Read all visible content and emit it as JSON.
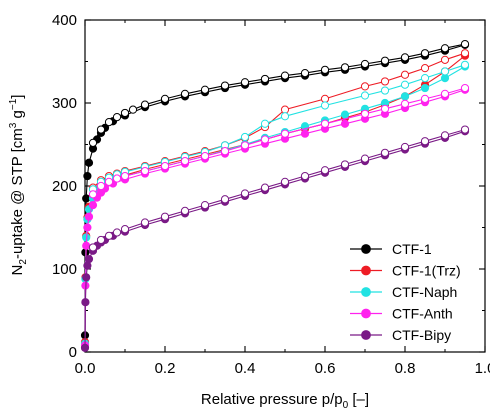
{
  "chart_data": {
    "type": "scatter",
    "xlabel": {
      "main": "Relative pressure p/p",
      "sub": "0",
      "tail": " [–]"
    },
    "ylabel": {
      "pre": "N",
      "sub1": "2",
      "mid": "-uptake @ STP [cm",
      "sup1": "3",
      "mid2": " g",
      "sup2": "−1",
      "tail": "]"
    },
    "xlim": [
      0.0,
      1.0
    ],
    "ylim": [
      0,
      400
    ],
    "xticks": [
      "0.0",
      "0.2",
      "0.4",
      "0.6",
      "0.8",
      "1.0"
    ],
    "yticks": [
      "0",
      "100",
      "200",
      "300",
      "400"
    ],
    "legend_position": "bottom-right",
    "series": [
      {
        "name": "CTF-1",
        "color": "#000000",
        "adsorption": [
          [
            0.0,
            20
          ],
          [
            0.001,
            120
          ],
          [
            0.003,
            185
          ],
          [
            0.006,
            212
          ],
          [
            0.01,
            228
          ],
          [
            0.02,
            245
          ],
          [
            0.03,
            256
          ],
          [
            0.04,
            264
          ],
          [
            0.05,
            270
          ],
          [
            0.07,
            278
          ],
          [
            0.1,
            285
          ],
          [
            0.15,
            295
          ],
          [
            0.2,
            302
          ],
          [
            0.25,
            308
          ],
          [
            0.3,
            313
          ],
          [
            0.35,
            318
          ],
          [
            0.4,
            322
          ],
          [
            0.45,
            326
          ],
          [
            0.5,
            330
          ],
          [
            0.55,
            333
          ],
          [
            0.6,
            337
          ],
          [
            0.65,
            340
          ],
          [
            0.7,
            344
          ],
          [
            0.75,
            348
          ],
          [
            0.8,
            352
          ],
          [
            0.85,
            357
          ],
          [
            0.9,
            363
          ],
          [
            0.95,
            370
          ]
        ],
        "desorption": [
          [
            0.95,
            371
          ],
          [
            0.9,
            366
          ],
          [
            0.85,
            360
          ],
          [
            0.8,
            355
          ],
          [
            0.75,
            351
          ],
          [
            0.7,
            347
          ],
          [
            0.65,
            343
          ],
          [
            0.6,
            340
          ],
          [
            0.55,
            336
          ],
          [
            0.5,
            333
          ],
          [
            0.45,
            329
          ],
          [
            0.4,
            325
          ],
          [
            0.35,
            321
          ],
          [
            0.3,
            316
          ],
          [
            0.25,
            311
          ],
          [
            0.2,
            305
          ],
          [
            0.15,
            298
          ],
          [
            0.12,
            292
          ],
          [
            0.1,
            288
          ],
          [
            0.08,
            283
          ],
          [
            0.06,
            277
          ],
          [
            0.04,
            268
          ],
          [
            0.02,
            252
          ]
        ]
      },
      {
        "name": "CTF-1(Trz)",
        "color": "#ee1c25",
        "adsorption": [
          [
            0.0,
            12
          ],
          [
            0.001,
            90
          ],
          [
            0.003,
            140
          ],
          [
            0.006,
            162
          ],
          [
            0.01,
            175
          ],
          [
            0.02,
            188
          ],
          [
            0.03,
            195
          ],
          [
            0.04,
            200
          ],
          [
            0.05,
            204
          ],
          [
            0.07,
            209
          ],
          [
            0.1,
            213
          ],
          [
            0.15,
            220
          ],
          [
            0.2,
            226
          ],
          [
            0.25,
            232
          ],
          [
            0.3,
            238
          ],
          [
            0.35,
            244
          ],
          [
            0.4,
            250
          ],
          [
            0.45,
            256
          ],
          [
            0.5,
            263
          ],
          [
            0.55,
            269
          ],
          [
            0.6,
            275
          ],
          [
            0.65,
            282
          ],
          [
            0.7,
            289
          ],
          [
            0.75,
            298
          ],
          [
            0.8,
            308
          ],
          [
            0.85,
            322
          ],
          [
            0.9,
            338
          ],
          [
            0.95,
            357
          ]
        ],
        "desorption": [
          [
            0.95,
            360
          ],
          [
            0.9,
            352
          ],
          [
            0.85,
            342
          ],
          [
            0.8,
            334
          ],
          [
            0.75,
            326
          ],
          [
            0.7,
            320
          ],
          [
            0.6,
            305
          ],
          [
            0.5,
            292
          ],
          [
            0.45,
            271
          ],
          [
            0.4,
            258
          ],
          [
            0.35,
            249
          ],
          [
            0.3,
            242
          ],
          [
            0.25,
            236
          ],
          [
            0.2,
            230
          ],
          [
            0.15,
            224
          ],
          [
            0.1,
            218
          ],
          [
            0.08,
            215
          ],
          [
            0.06,
            212
          ],
          [
            0.04,
            207
          ],
          [
            0.02,
            198
          ]
        ]
      },
      {
        "name": "CTF-Naph",
        "color": "#22e2e2",
        "adsorption": [
          [
            0.0,
            10
          ],
          [
            0.001,
            88
          ],
          [
            0.003,
            138
          ],
          [
            0.006,
            160
          ],
          [
            0.01,
            172
          ],
          [
            0.02,
            185
          ],
          [
            0.03,
            193
          ],
          [
            0.04,
            198
          ],
          [
            0.05,
            202
          ],
          [
            0.07,
            207
          ],
          [
            0.1,
            212
          ],
          [
            0.15,
            218
          ],
          [
            0.2,
            224
          ],
          [
            0.25,
            230
          ],
          [
            0.3,
            236
          ],
          [
            0.35,
            243
          ],
          [
            0.4,
            250
          ],
          [
            0.45,
            258
          ],
          [
            0.5,
            265
          ],
          [
            0.55,
            272
          ],
          [
            0.6,
            279
          ],
          [
            0.65,
            286
          ],
          [
            0.7,
            293
          ],
          [
            0.75,
            300
          ],
          [
            0.8,
            308
          ],
          [
            0.85,
            318
          ],
          [
            0.9,
            330
          ],
          [
            0.95,
            344
          ]
        ],
        "desorption": [
          [
            0.95,
            346
          ],
          [
            0.9,
            338
          ],
          [
            0.85,
            330
          ],
          [
            0.8,
            322
          ],
          [
            0.75,
            315
          ],
          [
            0.7,
            309
          ],
          [
            0.6,
            297
          ],
          [
            0.5,
            284
          ],
          [
            0.45,
            275
          ],
          [
            0.4,
            259
          ],
          [
            0.35,
            249
          ],
          [
            0.3,
            241
          ],
          [
            0.25,
            235
          ],
          [
            0.2,
            229
          ],
          [
            0.15,
            223
          ],
          [
            0.1,
            217
          ],
          [
            0.08,
            214
          ],
          [
            0.06,
            210
          ],
          [
            0.04,
            205
          ],
          [
            0.02,
            196
          ]
        ]
      },
      {
        "name": "CTF-Anth",
        "color": "#ff22ee",
        "adsorption": [
          [
            0.0,
            8
          ],
          [
            0.001,
            80
          ],
          [
            0.003,
            128
          ],
          [
            0.006,
            150
          ],
          [
            0.01,
            163
          ],
          [
            0.02,
            177
          ],
          [
            0.03,
            186
          ],
          [
            0.04,
            192
          ],
          [
            0.05,
            197
          ],
          [
            0.07,
            203
          ],
          [
            0.1,
            208
          ],
          [
            0.15,
            215
          ],
          [
            0.2,
            221
          ],
          [
            0.25,
            227
          ],
          [
            0.3,
            233
          ],
          [
            0.35,
            239
          ],
          [
            0.4,
            245
          ],
          [
            0.45,
            251
          ],
          [
            0.5,
            257
          ],
          [
            0.55,
            263
          ],
          [
            0.6,
            269
          ],
          [
            0.65,
            275
          ],
          [
            0.7,
            281
          ],
          [
            0.75,
            287
          ],
          [
            0.8,
            294
          ],
          [
            0.85,
            301
          ],
          [
            0.9,
            308
          ],
          [
            0.95,
            316
          ]
        ],
        "desorption": [
          [
            0.95,
            318
          ],
          [
            0.9,
            311
          ],
          [
            0.85,
            305
          ],
          [
            0.8,
            299
          ],
          [
            0.75,
            293
          ],
          [
            0.7,
            287
          ],
          [
            0.6,
            275
          ],
          [
            0.5,
            263
          ],
          [
            0.45,
            256
          ],
          [
            0.4,
            249
          ],
          [
            0.35,
            242
          ],
          [
            0.3,
            236
          ],
          [
            0.25,
            230
          ],
          [
            0.2,
            224
          ],
          [
            0.15,
            218
          ],
          [
            0.1,
            212
          ],
          [
            0.08,
            209
          ],
          [
            0.06,
            205
          ],
          [
            0.04,
            200
          ],
          [
            0.02,
            190
          ]
        ]
      },
      {
        "name": "CTF-Bipy",
        "color": "#7a1a86",
        "adsorption": [
          [
            0.0,
            5
          ],
          [
            0.001,
            60
          ],
          [
            0.003,
            90
          ],
          [
            0.006,
            104
          ],
          [
            0.01,
            112
          ],
          [
            0.02,
            122
          ],
          [
            0.03,
            128
          ],
          [
            0.04,
            132
          ],
          [
            0.05,
            135
          ],
          [
            0.07,
            140
          ],
          [
            0.1,
            145
          ],
          [
            0.15,
            153
          ],
          [
            0.2,
            160
          ],
          [
            0.25,
            167
          ],
          [
            0.3,
            174
          ],
          [
            0.35,
            181
          ],
          [
            0.4,
            188
          ],
          [
            0.45,
            195
          ],
          [
            0.5,
            202
          ],
          [
            0.55,
            209
          ],
          [
            0.6,
            216
          ],
          [
            0.65,
            223
          ],
          [
            0.7,
            230
          ],
          [
            0.75,
            237
          ],
          [
            0.8,
            244
          ],
          [
            0.85,
            251
          ],
          [
            0.9,
            258
          ],
          [
            0.95,
            266
          ]
        ],
        "desorption": [
          [
            0.95,
            268
          ],
          [
            0.9,
            261
          ],
          [
            0.85,
            254
          ],
          [
            0.8,
            247
          ],
          [
            0.75,
            240
          ],
          [
            0.7,
            233
          ],
          [
            0.65,
            226
          ],
          [
            0.6,
            219
          ],
          [
            0.55,
            212
          ],
          [
            0.5,
            205
          ],
          [
            0.45,
            198
          ],
          [
            0.4,
            191
          ],
          [
            0.35,
            184
          ],
          [
            0.3,
            177
          ],
          [
            0.25,
            170
          ],
          [
            0.2,
            163
          ],
          [
            0.15,
            156
          ],
          [
            0.1,
            148
          ],
          [
            0.08,
            144
          ],
          [
            0.06,
            140
          ],
          [
            0.04,
            135
          ],
          [
            0.02,
            126
          ]
        ]
      }
    ]
  }
}
